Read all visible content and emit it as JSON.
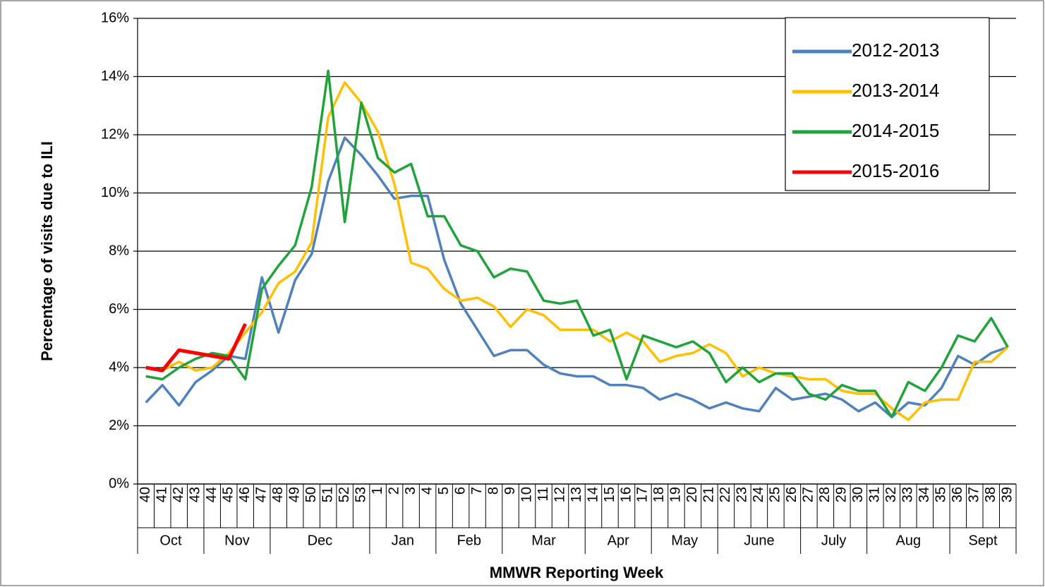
{
  "chart_data": {
    "type": "line",
    "x_label": "MMWR Reporting Week",
    "y_label": "Percentage of visits due to ILI",
    "categories": [
      "40",
      "41",
      "42",
      "43",
      "44",
      "45",
      "46",
      "47",
      "48",
      "49",
      "50",
      "51",
      "52",
      "53",
      "1",
      "2",
      "3",
      "4",
      "5",
      "6",
      "7",
      "8",
      "9",
      "10",
      "11",
      "12",
      "13",
      "14",
      "15",
      "16",
      "17",
      "18",
      "19",
      "20",
      "21",
      "22",
      "23",
      "24",
      "25",
      "26",
      "27",
      "28",
      "29",
      "30",
      "31",
      "32",
      "33",
      "34",
      "35",
      "36",
      "37",
      "38",
      "39"
    ],
    "month_labels": [
      "Oct",
      null,
      null,
      null,
      "Nov",
      null,
      null,
      null,
      "Dec",
      null,
      null,
      null,
      null,
      null,
      "Jan",
      null,
      null,
      null,
      "Feb",
      null,
      null,
      null,
      "Mar",
      null,
      null,
      null,
      null,
      "Apr",
      null,
      null,
      null,
      "May",
      null,
      null,
      null,
      "June",
      null,
      null,
      null,
      null,
      "July",
      null,
      null,
      null,
      "Aug",
      null,
      null,
      null,
      null,
      "Sept",
      null,
      null,
      null
    ],
    "ylim": [
      0,
      16
    ],
    "yticks": [
      {
        "value": 0,
        "label": "0%"
      },
      {
        "value": 2,
        "label": "2%"
      },
      {
        "value": 4,
        "label": "4%"
      },
      {
        "value": 6,
        "label": "6%"
      },
      {
        "value": 8,
        "label": "8%"
      },
      {
        "value": 10,
        "label": "10%"
      },
      {
        "value": 12,
        "label": "12%"
      },
      {
        "value": 14,
        "label": "14%"
      },
      {
        "value": 16,
        "label": "16%"
      }
    ],
    "grid": true,
    "legend": "upper right",
    "series": [
      {
        "name": "2012-2013",
        "color": "#4f81bd",
        "values": [
          2.8,
          3.4,
          2.7,
          3.5,
          3.9,
          4.4,
          4.3,
          7.1,
          5.2,
          7.0,
          7.9,
          10.4,
          11.9,
          11.3,
          10.6,
          9.8,
          9.9,
          9.9,
          7.7,
          6.2,
          5.3,
          4.4,
          4.6,
          4.6,
          4.1,
          3.8,
          3.7,
          3.7,
          3.4,
          3.4,
          3.3,
          2.9,
          3.1,
          2.9,
          2.6,
          2.8,
          2.6,
          2.5,
          3.3,
          2.9,
          3.0,
          3.1,
          2.9,
          2.5,
          2.8,
          2.3,
          2.8,
          2.7,
          3.3,
          4.4,
          4.1,
          4.5,
          4.7
        ]
      },
      {
        "name": "2013-2014",
        "color": "#ffc000",
        "values": [
          4.0,
          3.9,
          4.2,
          3.9,
          4.0,
          4.5,
          5.2,
          5.9,
          6.9,
          7.3,
          8.3,
          12.6,
          13.8,
          13.1,
          12.1,
          10.3,
          7.6,
          7.4,
          6.7,
          6.3,
          6.4,
          6.1,
          5.4,
          6.0,
          5.8,
          5.3,
          5.3,
          5.3,
          4.9,
          5.2,
          4.9,
          4.2,
          4.4,
          4.5,
          4.8,
          4.5,
          3.7,
          4.0,
          3.8,
          3.7,
          3.6,
          3.6,
          3.2,
          3.1,
          3.1,
          2.6,
          2.2,
          2.8,
          2.9,
          2.9,
          4.2,
          4.2,
          4.7
        ]
      },
      {
        "name": "2014-2015",
        "color": "#1fa33a",
        "values": [
          3.7,
          3.6,
          4.0,
          4.3,
          4.5,
          4.4,
          3.6,
          6.7,
          7.5,
          8.2,
          10.2,
          14.2,
          9.0,
          13.1,
          11.2,
          10.7,
          11.0,
          9.2,
          9.2,
          8.2,
          8.0,
          7.1,
          7.4,
          7.3,
          6.3,
          6.2,
          6.3,
          5.1,
          5.3,
          3.6,
          5.1,
          4.9,
          4.7,
          4.9,
          4.5,
          3.5,
          4.0,
          3.5,
          3.8,
          3.8,
          3.1,
          2.9,
          3.4,
          3.2,
          3.2,
          2.3,
          3.5,
          3.2,
          4.0,
          5.1,
          4.9,
          5.7,
          4.7
        ]
      },
      {
        "name": "2015-2016",
        "color": "#ff0000",
        "values": [
          4.0,
          3.9,
          4.6,
          4.5,
          4.4,
          4.3,
          5.5,
          null,
          null,
          null,
          null,
          null,
          null,
          null,
          null,
          null,
          null,
          null,
          null,
          null,
          null,
          null,
          null,
          null,
          null,
          null,
          null,
          null,
          null,
          null,
          null,
          null,
          null,
          null,
          null,
          null,
          null,
          null,
          null,
          null,
          null,
          null,
          null,
          null,
          null,
          null,
          null,
          null,
          null,
          null,
          null,
          null,
          null
        ]
      }
    ]
  }
}
